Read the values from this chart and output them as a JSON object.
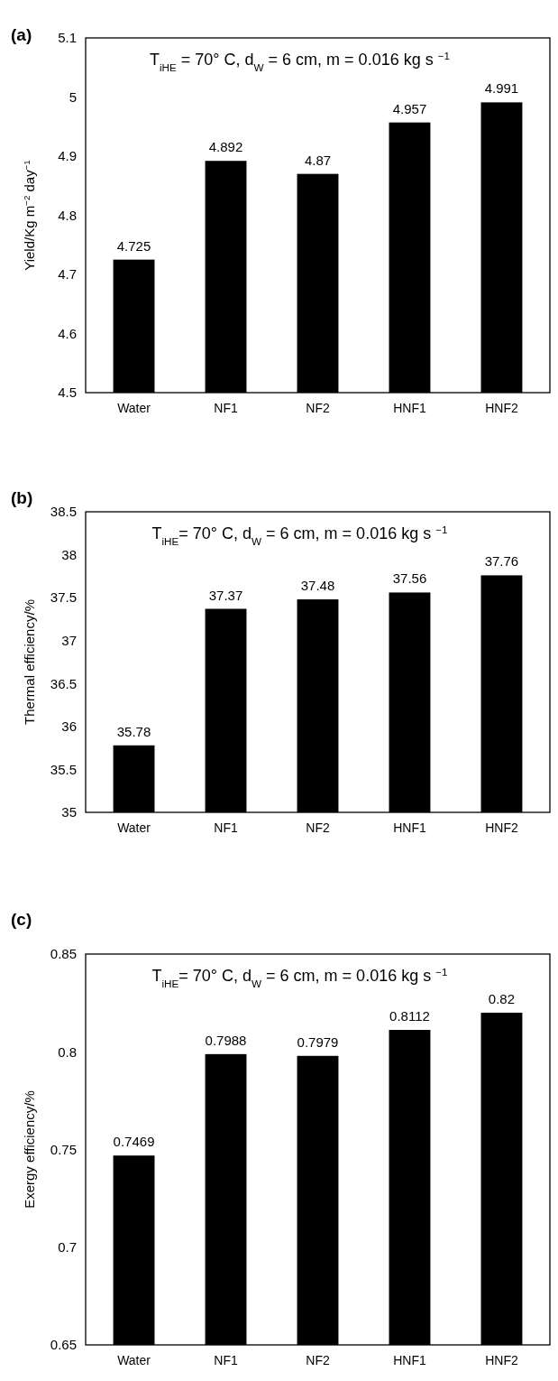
{
  "chart_data": [
    {
      "type": "bar",
      "title": "(a)",
      "ylabel": "Yield/Kg m$^{−2}$ day$^{−1}$",
      "categories": [
        "Water",
        "NF1",
        "NF2",
        "HNF1",
        "HNF2"
      ],
      "values": [
        4.725,
        4.892,
        4.87,
        4.957,
        4.991
      ],
      "color": "#000000",
      "ylim": [
        4.5,
        5.1
      ],
      "yticks": [
        4.5,
        4.6,
        4.7,
        4.8,
        4.9,
        5,
        5.1
      ],
      "data_labels": true,
      "annotations": [
        "T$_{iHE}$ = 70° C, d$_{W}$ = 6 cm, m = 0.016 kg s $^{−1}$"
      ]
    },
    {
      "type": "bar",
      "title": "(b)",
      "ylabel": "Thermal efficiency/%",
      "categories": [
        "Water",
        "NF1",
        "NF2",
        "HNF1",
        "HNF2"
      ],
      "values": [
        35.78,
        37.37,
        37.48,
        37.56,
        37.76
      ],
      "color": "#000000",
      "ylim": [
        35,
        38.5
      ],
      "yticks": [
        35,
        35.5,
        36,
        36.5,
        37,
        37.5,
        38,
        38.5
      ],
      "data_labels": true,
      "annotations": [
        "T$_{iHE}$= 70° C, d$_{W}$ = 6 cm, m = 0.016 kg s $^{−1}$"
      ]
    },
    {
      "type": "bar",
      "title": "(c)",
      "ylabel": "Exergy efficiency/%",
      "categories": [
        "Water",
        "NF1",
        "NF2",
        "HNF1",
        "HNF2"
      ],
      "values": [
        0.7469,
        0.7988,
        0.7979,
        0.8112,
        0.82
      ],
      "color": "#000000",
      "ylim": [
        0.65,
        0.85
      ],
      "yticks": [
        0.65,
        0.7,
        0.75,
        0.8,
        0.85
      ],
      "data_labels": true,
      "annotations": [
        "T$_{iHE}$= 70° C, d$_{W}$ = 6 cm, m = 0.016 kg s $^{−1}$"
      ]
    }
  ]
}
